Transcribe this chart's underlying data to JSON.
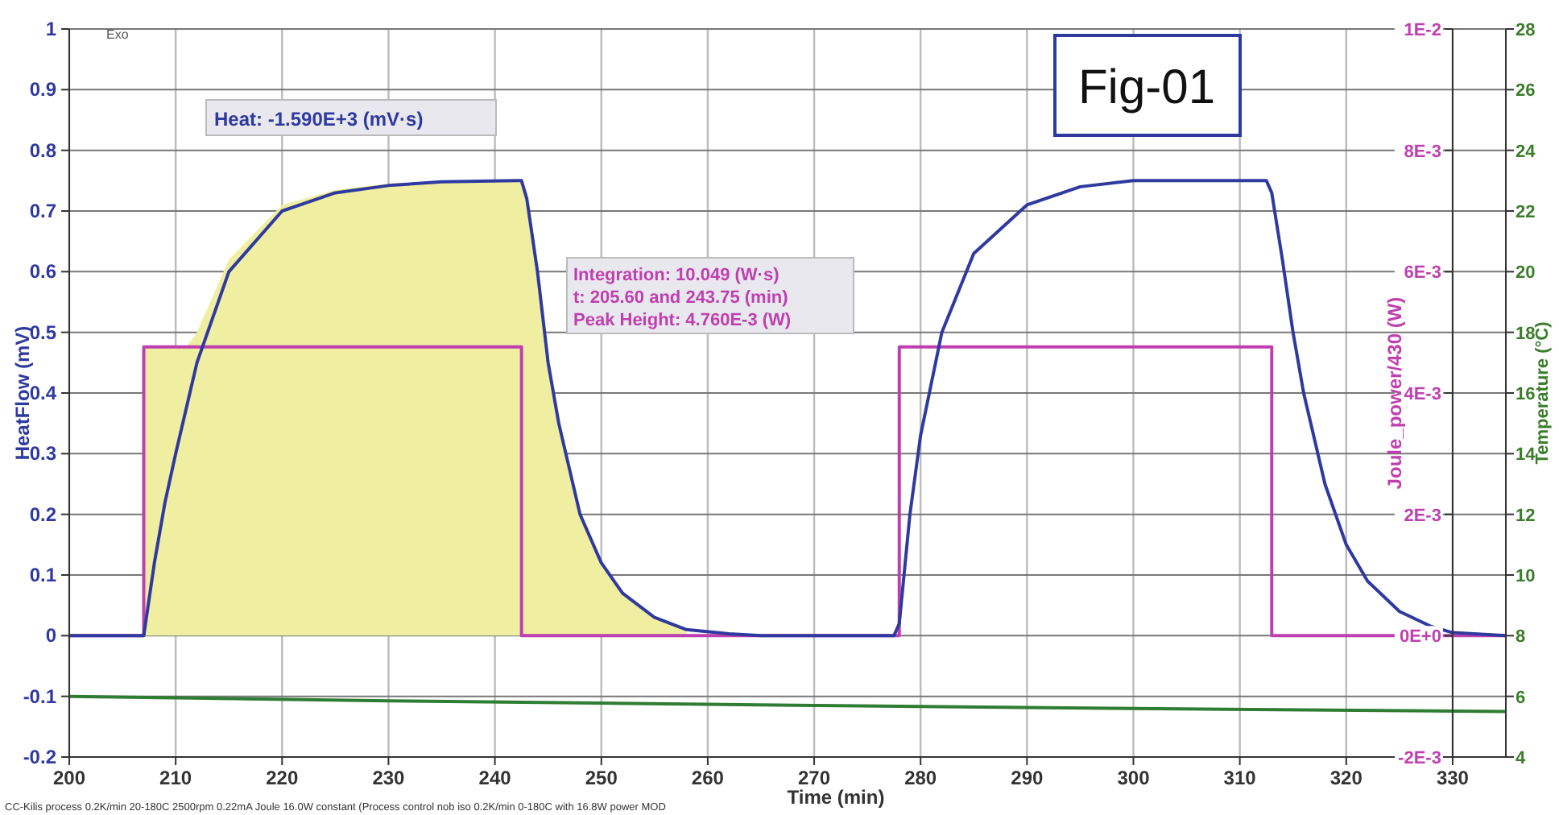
{
  "chart_data": {
    "type": "line",
    "xlabel": "Time (min)",
    "ylabel": "HeatFlow (mV)",
    "y2label": "Joule_power/430 (W)",
    "y3label": "Temperature (°C)",
    "annotations": [
      "Exo",
      "Fig-01",
      "Heat:  -1.590E+3 (mV·s)",
      "Integration:  10.049 (W·s)",
      "t: 205.60 and 243.75 (min)",
      "Peak Height:  4.760E-3 (W)",
      "CC-Kilis process 0.2K/min 20-180C 2500rpm 0.22mA Joule 16.0W constant (Process control nob iso 0.2K/min 0-180C with 16.8W power MOD"
    ],
    "xlim": [
      200,
      335
    ],
    "xticks": [
      200,
      210,
      220,
      230,
      240,
      250,
      260,
      270,
      280,
      290,
      300,
      310,
      320,
      330
    ],
    "ylim": [
      -0.2,
      1
    ],
    "yticks": [
      -0.2,
      -0.1,
      0,
      0.1,
      0.2,
      0.3,
      0.4,
      0.5,
      0.6,
      0.7,
      0.8,
      0.9,
      1
    ],
    "y2lim": [
      -0.002,
      0.01
    ],
    "y2ticks": [
      {
        "value": -0.002,
        "label": "-2E-3"
      },
      {
        "value": 0,
        "label": "0E+0"
      },
      {
        "value": 0.002,
        "label": "2E-3"
      },
      {
        "value": 0.004,
        "label": "4E-3"
      },
      {
        "value": 0.006,
        "label": "6E-3"
      },
      {
        "value": 0.008,
        "label": "8E-3"
      },
      {
        "value": 0.01,
        "label": "1E-2"
      }
    ],
    "y3lim": [
      4,
      28
    ],
    "y3ticks": [
      4,
      6,
      8,
      10,
      12,
      14,
      16,
      18,
      20,
      22,
      24,
      26,
      28
    ],
    "grid": true,
    "series": [
      {
        "type": "area",
        "color": "#f0eea0",
        "x": [
          207,
          207.1,
          211,
          212,
          215,
          220,
          225,
          230,
          242.5,
          243,
          244,
          245,
          246,
          248,
          250,
          252,
          255,
          258
        ],
        "values": [
          0,
          0.476,
          0.476,
          0.5,
          0.62,
          0.71,
          0.735,
          0.745,
          0.75,
          0.72,
          0.6,
          0.45,
          0.35,
          0.2,
          0.12,
          0.07,
          0.03,
          0.01
        ]
      },
      {
        "axis": "y3",
        "color": "#2e7d32",
        "x": [
          200,
          230,
          270,
          300,
          335
        ],
        "values": [
          6.0,
          5.85,
          5.7,
          5.6,
          5.5
        ]
      },
      {
        "axis": "y2",
        "color": "#c03fb0",
        "x": [
          200,
          207,
          207,
          242.5,
          242.5,
          278,
          278,
          313,
          313,
          335
        ],
        "values": [
          0,
          0,
          0.00476,
          0.00476,
          0,
          0,
          0.00476,
          0.00476,
          0,
          0
        ]
      },
      {
        "color": "#2e3a9f",
        "x": [
          200,
          207,
          208,
          209,
          210,
          212,
          215,
          220,
          225,
          230,
          235,
          242,
          242.5,
          243,
          244,
          245,
          246,
          248,
          250,
          252,
          255,
          258,
          262,
          265,
          277.5,
          278,
          279,
          280,
          282,
          285,
          290,
          295,
          300,
          312.5,
          313,
          314,
          315,
          316,
          318,
          320,
          322,
          325,
          328,
          330,
          335
        ],
        "values": [
          0,
          0,
          0.12,
          0.22,
          0.3,
          0.45,
          0.6,
          0.7,
          0.73,
          0.742,
          0.748,
          0.75,
          0.75,
          0.72,
          0.6,
          0.45,
          0.35,
          0.2,
          0.12,
          0.07,
          0.03,
          0.01,
          0.003,
          0,
          0,
          0.02,
          0.2,
          0.33,
          0.5,
          0.63,
          0.71,
          0.74,
          0.75,
          0.75,
          0.73,
          0.62,
          0.5,
          0.4,
          0.25,
          0.15,
          0.09,
          0.04,
          0.015,
          0.005,
          0
        ]
      }
    ]
  }
}
